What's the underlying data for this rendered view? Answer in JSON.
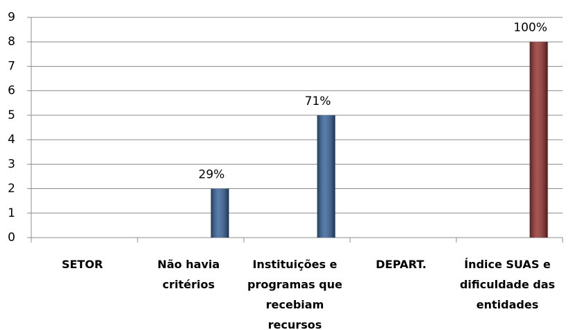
{
  "chart_data": {
    "type": "bar",
    "categories": [
      "SETOR",
      "Não havia critérios",
      "Instituições e programas que recebiam recursos",
      "DEPART.",
      "Índice SUAS e dificuldade das entidades"
    ],
    "values": [
      null,
      2,
      5,
      null,
      8
    ],
    "bar_notes": [
      null,
      "29%",
      "71%",
      null,
      "100%"
    ],
    "colors": [
      "#2f5b93",
      "#2f5b93",
      "#2f5b93",
      "#2f5b93",
      "#8e2a28"
    ],
    "ylim": [
      0,
      9
    ],
    "yticks": [
      0,
      1,
      2,
      3,
      4,
      5,
      6,
      7,
      8,
      9
    ],
    "grid": true
  }
}
